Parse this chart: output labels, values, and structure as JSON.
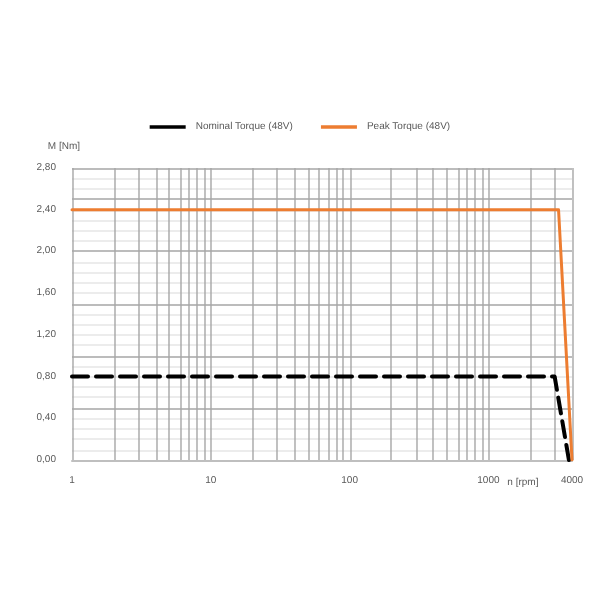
{
  "chart_data": {
    "type": "line",
    "xlabel": "n [rpm]",
    "ylabel": "M [Nm]",
    "log": "x",
    "grid": true,
    "legend": "top",
    "marker": "none",
    "xlim": [
      1,
      4000
    ],
    "xticks": [
      1,
      10,
      100,
      1000,
      4000
    ],
    "ylim": [
      0,
      2.8
    ],
    "yticks": [
      {
        "value": 0,
        "label": "0,00"
      },
      {
        "value": 0.4,
        "label": "0,40"
      },
      {
        "value": 0.8,
        "label": "0,80"
      },
      {
        "value": 1.2,
        "label": "1,20"
      },
      {
        "value": 1.6,
        "label": "1,60"
      },
      {
        "value": 2.0,
        "label": "2,00"
      },
      {
        "value": 2.4,
        "label": "2,40"
      },
      {
        "value": 2.8,
        "label": "2,80"
      }
    ],
    "series": [
      {
        "name": "Nominal Torque (48V)",
        "color": "#000000",
        "line_style": "dashed",
        "x": [
          1,
          3000,
          3800
        ],
        "values": [
          0.8,
          0.8,
          0
        ]
      },
      {
        "name": "Peak Torque (48V)",
        "color": "#ed7d31",
        "line_style": "solid",
        "x": [
          1,
          3200,
          4000
        ],
        "values": [
          2.4,
          2.4,
          0
        ]
      }
    ]
  }
}
